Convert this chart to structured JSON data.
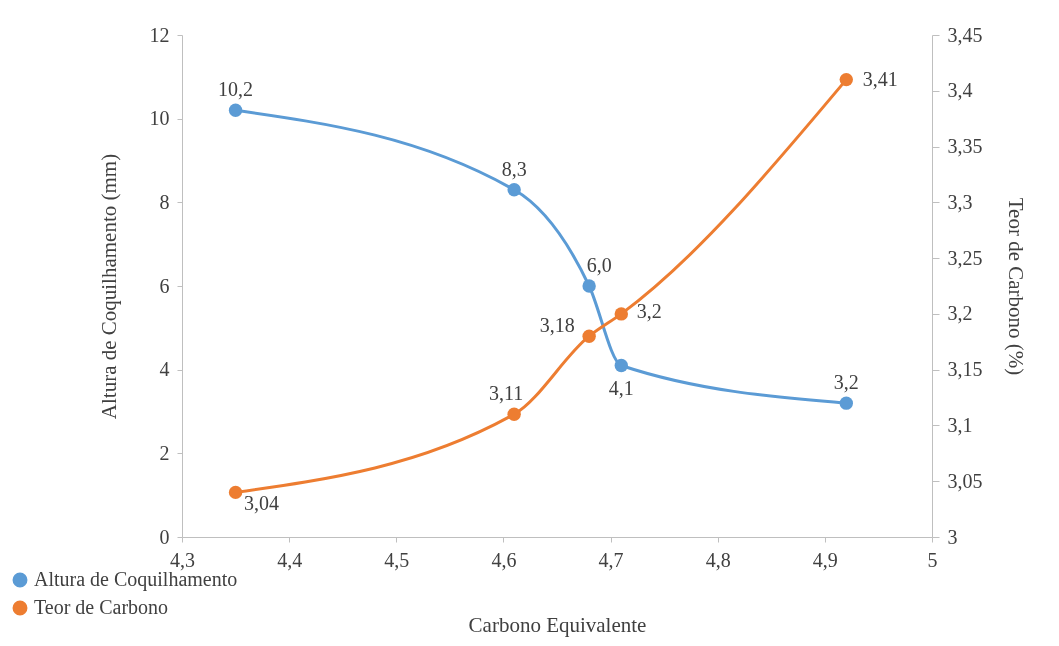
{
  "chart_data": {
    "type": "line",
    "xlabel": "Carbono Equivalente",
    "ylabel": "Altura de Coquilhamento (mm)",
    "y2label": "Teor de Carbono (%)",
    "x": [
      4.35,
      4.61,
      4.68,
      4.71,
      4.92
    ],
    "series": [
      {
        "name": "Altura de Coquilhamento",
        "color": "#5b9bd5",
        "values": [
          10.2,
          8.3,
          6.0,
          4.1,
          3.2
        ],
        "value_labels": [
          "10,2",
          "8,3",
          "6,0",
          "4,1",
          "3,2"
        ]
      },
      {
        "name": "Teor de Carbono",
        "color": "#ed7d31",
        "axis": "y2",
        "values": [
          3.04,
          3.11,
          3.18,
          3.2,
          3.41
        ],
        "value_labels": [
          "3,04",
          "3,11",
          "3,18",
          "3,2",
          "3,41"
        ]
      }
    ],
    "xlim": [
      4.3,
      5
    ],
    "xticks": [
      {
        "value": 4.3,
        "label": "4,3"
      },
      {
        "value": 4.4,
        "label": "4,4"
      },
      {
        "value": 4.5,
        "label": "4,5"
      },
      {
        "value": 4.6,
        "label": "4,6"
      },
      {
        "value": 4.7,
        "label": "4,7"
      },
      {
        "value": 4.8,
        "label": "4,8"
      },
      {
        "value": 4.9,
        "label": "4,9"
      },
      {
        "value": 5,
        "label": "5"
      }
    ],
    "ylim": [
      0,
      12
    ],
    "yticks": [
      0,
      2,
      4,
      6,
      8,
      10,
      12
    ],
    "y2lim": [
      3,
      3.45
    ],
    "y2ticks": [
      {
        "value": 3,
        "label": "3"
      },
      {
        "value": 3.05,
        "label": "3,05"
      },
      {
        "value": 3.1,
        "label": "3,1"
      },
      {
        "value": 3.15,
        "label": "3,15"
      },
      {
        "value": 3.2,
        "label": "3,2"
      },
      {
        "value": 3.25,
        "label": "3,25"
      },
      {
        "value": 3.3,
        "label": "3,3"
      },
      {
        "value": 3.35,
        "label": "3,35"
      },
      {
        "value": 3.4,
        "label": "3,4"
      },
      {
        "value": 3.45,
        "label": "3,45"
      }
    ],
    "grid": false,
    "legend": "bottom left",
    "marker": "circle",
    "line_style": "solid"
  }
}
